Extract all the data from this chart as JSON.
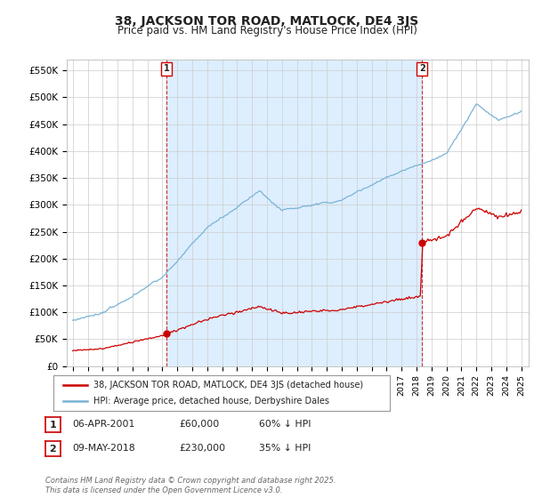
{
  "title": "38, JACKSON TOR ROAD, MATLOCK, DE4 3JS",
  "subtitle": "Price paid vs. HM Land Registry's House Price Index (HPI)",
  "y_ticks": [
    0,
    50000,
    100000,
    150000,
    200000,
    250000,
    300000,
    350000,
    400000,
    450000,
    500000,
    550000
  ],
  "y_tick_labels": [
    "£0",
    "£50K",
    "£100K",
    "£150K",
    "£200K",
    "£250K",
    "£300K",
    "£350K",
    "£400K",
    "£450K",
    "£500K",
    "£550K"
  ],
  "xlim_start": 1994.6,
  "xlim_end": 2025.5,
  "ylim": [
    0,
    570000
  ],
  "hpi_color": "#7ab3d4",
  "price_color": "#cc0000",
  "shade_color": "#ddeeff",
  "sale1_year": 2001.27,
  "sale1_price": 60000,
  "sale2_year": 2018.37,
  "sale2_price": 230000,
  "legend_line1": "38, JACKSON TOR ROAD, MATLOCK, DE4 3JS (detached house)",
  "legend_line2": "HPI: Average price, detached house, Derbyshire Dales",
  "copyright": "Contains HM Land Registry data © Crown copyright and database right 2025.\nThis data is licensed under the Open Government Licence v3.0.",
  "background_color": "#ffffff",
  "grid_color": "#cccccc",
  "title_color": "#222222"
}
